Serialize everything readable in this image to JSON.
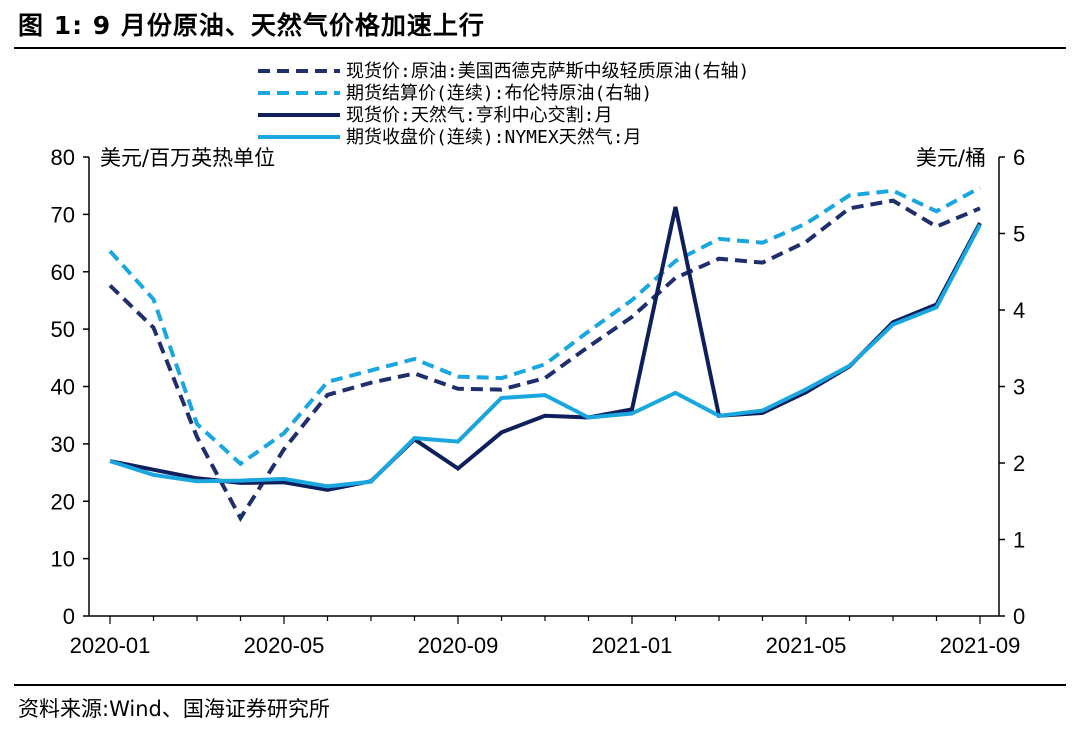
{
  "figure": {
    "title": "图 1:  9 月份原油、天然气价格加速上行",
    "source": "资料来源:Wind、国海证券研究所"
  },
  "chart_data": {
    "type": "line",
    "x": [
      "2020-01",
      "2020-02",
      "2020-03",
      "2020-04",
      "2020-05",
      "2020-06",
      "2020-07",
      "2020-08",
      "2020-09",
      "2020-10",
      "2020-11",
      "2020-12",
      "2021-01",
      "2021-02",
      "2021-03",
      "2021-04",
      "2021-05",
      "2021-06",
      "2021-07",
      "2021-08",
      "2021-09"
    ],
    "xticks": [
      "2020-01",
      "2020-05",
      "2020-09",
      "2021-01",
      "2021-05",
      "2021-09"
    ],
    "left_axis": {
      "label": "美元/百万英热单位",
      "ylim": [
        0,
        80
      ],
      "ticks": [
        0,
        10,
        20,
        30,
        40,
        50,
        60,
        70,
        80
      ]
    },
    "right_axis": {
      "label": "美元/桶",
      "ylim": [
        0,
        6
      ],
      "ticks": [
        0,
        1,
        2,
        3,
        4,
        5,
        6
      ]
    },
    "legend_position": "top-center",
    "series": [
      {
        "name": "现货价:原油:美国西德克萨斯中级轻质原油(右轴)",
        "axis": "right",
        "style": "dashed",
        "color": "#1f2f6b",
        "values": [
          4.32,
          3.77,
          2.34,
          1.28,
          2.18,
          2.89,
          3.05,
          3.17,
          2.97,
          2.96,
          3.11,
          3.52,
          3.91,
          4.42,
          4.67,
          4.62,
          4.89,
          5.33,
          5.43,
          5.09,
          5.33
        ]
      },
      {
        "name": "期货结算价(连续):布伦特原油(右轴)",
        "axis": "right",
        "style": "dashed",
        "color": "#1aa7e0",
        "values": [
          4.77,
          4.14,
          2.51,
          1.99,
          2.39,
          3.06,
          3.21,
          3.36,
          3.13,
          3.11,
          3.29,
          3.72,
          4.13,
          4.64,
          4.93,
          4.88,
          5.13,
          5.5,
          5.56,
          5.29,
          5.6
        ]
      },
      {
        "name": "现货价:天然气:亨利中心交割:月",
        "axis": "left",
        "style": "solid",
        "color": "#0f1f5c",
        "values": [
          27.0,
          25.5,
          24.0,
          23.2,
          23.3,
          22.0,
          23.5,
          30.8,
          25.7,
          32.0,
          34.9,
          34.6,
          36.0,
          71.3,
          34.9,
          35.4,
          39.0,
          43.5,
          51.2,
          54.3,
          68.5
        ]
      },
      {
        "name": "期货收盘价(连续):NYMEX天然气:月",
        "axis": "left",
        "style": "solid",
        "color": "#1aa7e0",
        "values": [
          27.0,
          24.6,
          23.5,
          23.6,
          23.9,
          22.6,
          23.4,
          31.0,
          30.4,
          38.0,
          38.5,
          34.6,
          35.3,
          38.9,
          34.9,
          35.8,
          39.5,
          43.6,
          50.8,
          53.8,
          68.2
        ]
      }
    ]
  },
  "colors": {
    "axis": "#000000",
    "dark_navy": "#0f1f5c",
    "navy_dashed": "#1f2f6b",
    "light_blue": "#1aa7e0"
  }
}
